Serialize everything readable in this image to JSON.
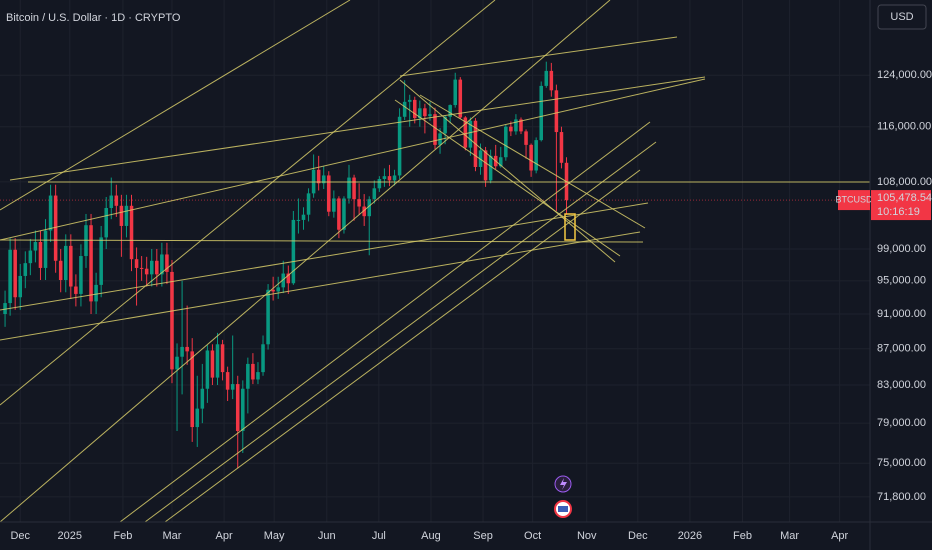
{
  "chart_data": {
    "type": "candlestick",
    "title": "Bitcoin / U.S. Dollar · 1D · CRYPTO",
    "currency": "USD",
    "symbol": "BTCUSD",
    "close_label": "105,478.54",
    "countdown": "10:16:19",
    "up_color": "#089981",
    "down_color": "#f23645",
    "log_scale": true,
    "grid": true,
    "ylim": [
      69500,
      136700
    ],
    "yticks": [
      {
        "value": 124000,
        "label": "124,000.00"
      },
      {
        "value": 116000,
        "label": "116,000.00"
      },
      {
        "value": 108000,
        "label": "108,000.00"
      },
      {
        "value": 99000,
        "label": "99,000.00"
      },
      {
        "value": 95000,
        "label": "95,000.00"
      },
      {
        "value": 91000,
        "label": "91,000.00"
      },
      {
        "value": 87000,
        "label": "87,000.00"
      },
      {
        "value": 83000,
        "label": "83,000.00"
      },
      {
        "value": 79000,
        "label": "79,000.00"
      },
      {
        "value": 75000,
        "label": "75,000.00"
      },
      {
        "value": 71800,
        "label": "71,800.00"
      }
    ],
    "xlim": [
      -1,
      171
    ],
    "xticks": [
      {
        "value": 3,
        "label": "Dec"
      },
      {
        "value": 12.8,
        "label": "2025"
      },
      {
        "value": 23.3,
        "label": "Feb"
      },
      {
        "value": 33,
        "label": "Mar"
      },
      {
        "value": 43.3,
        "label": "Apr"
      },
      {
        "value": 53.2,
        "label": "May"
      },
      {
        "value": 63.6,
        "label": "Jun"
      },
      {
        "value": 73.9,
        "label": "Jul"
      },
      {
        "value": 84.2,
        "label": "Aug"
      },
      {
        "value": 94.5,
        "label": "Sep"
      },
      {
        "value": 104.3,
        "label": "Oct"
      },
      {
        "value": 115,
        "label": "Nov"
      },
      {
        "value": 125.1,
        "label": "Dec"
      },
      {
        "value": 135.4,
        "label": "2026"
      },
      {
        "value": 145.8,
        "label": "Feb"
      },
      {
        "value": 155.1,
        "label": "Mar"
      },
      {
        "value": 165,
        "label": "Apr"
      }
    ],
    "open": [
      91000,
      92300,
      98900,
      93000,
      95600,
      97200,
      98800,
      99900,
      96600,
      101400,
      106100,
      97500,
      95100,
      99400,
      94300,
      93400,
      98100,
      102100,
      92500,
      94500,
      100500,
      104400,
      106100,
      104700,
      102000,
      104700,
      97700,
      96600,
      96500,
      95800,
      97500,
      95800,
      98300,
      96100,
      84700,
      86100,
      87200,
      86700,
      78600,
      80500,
      82600,
      86800,
      83800,
      87500,
      84400,
      82500,
      83100,
      78200,
      82600,
      85300,
      83600,
      84400,
      87500,
      93900,
      93700,
      94200,
      95900,
      94700,
      102800,
      102800,
      103500,
      106400,
      109700,
      107800,
      108900,
      103900,
      105700,
      101500,
      105700,
      108600,
      105600,
      104600,
      103300,
      105600,
      107100,
      108400,
      108800,
      108200,
      108900,
      117500,
      119800,
      120100,
      117300,
      118800,
      117600,
      117900,
      113300,
      115000,
      117500,
      119300,
      123300,
      117400,
      112900,
      116900,
      110100,
      112500,
      108200,
      111700,
      110200,
      111500,
      116000,
      115300,
      117100,
      115300,
      113300,
      109600,
      114000,
      122300,
      124700,
      121600,
      115200,
      110700
    ],
    "high": [
      93800,
      100400,
      100400,
      97100,
      98700,
      100300,
      101400,
      101400,
      102900,
      107600,
      107600,
      99000,
      100900,
      100900,
      95800,
      99600,
      103600,
      103600,
      96000,
      102000,
      105900,
      108600,
      107600,
      106200,
      106200,
      106200,
      99200,
      98100,
      98000,
      99000,
      99000,
      99800,
      99800,
      97600,
      87600,
      95000,
      92000,
      88200,
      84000,
      85300,
      87400,
      87500,
      88800,
      88000,
      85000,
      88500,
      84000,
      83500,
      86000,
      86500,
      85500,
      88500,
      94600,
      95500,
      95500,
      97500,
      96900,
      104000,
      105700,
      104500,
      107100,
      111900,
      111700,
      110200,
      109500,
      106800,
      106000,
      106000,
      110400,
      109000,
      107800,
      106300,
      106000,
      108200,
      108800,
      109900,
      110400,
      109700,
      118800,
      123200,
      120900,
      120600,
      120000,
      119500,
      119800,
      118900,
      115800,
      117700,
      119400,
      124400,
      123700,
      117600,
      117400,
      117300,
      113500,
      113000,
      112600,
      113300,
      113000,
      116300,
      116800,
      117900,
      117400,
      115600,
      113500,
      114400,
      123000,
      126200,
      126000,
      122500,
      116000,
      111500
    ],
    "low": [
      89500,
      90800,
      91500,
      91500,
      94100,
      95700,
      97300,
      95100,
      95100,
      99900,
      96000,
      93600,
      93600,
      92800,
      91900,
      91900,
      96600,
      91000,
      91000,
      93000,
      99000,
      102900,
      103200,
      98000,
      100500,
      96200,
      92000,
      95000,
      94300,
      94300,
      94300,
      94300,
      94600,
      83200,
      78200,
      82000,
      85200,
      77100,
      76600,
      79000,
      81100,
      83000,
      83000,
      83500,
      81300,
      81500,
      74500,
      76000,
      80000,
      83100,
      83100,
      84000,
      86900,
      92600,
      92800,
      93500,
      93400,
      94500,
      101000,
      101500,
      102600,
      105800,
      106800,
      107000,
      103300,
      103100,
      100400,
      101000,
      105000,
      102700,
      103500,
      102000,
      98200,
      105000,
      106600,
      107300,
      107400,
      107500,
      108400,
      117000,
      116000,
      116500,
      116000,
      115000,
      116900,
      112700,
      112000,
      113400,
      116500,
      118900,
      117200,
      112500,
      111700,
      109500,
      109000,
      107300,
      107800,
      109800,
      110000,
      111000,
      114600,
      114800,
      114900,
      111300,
      108700,
      109200,
      113800,
      122000,
      120600,
      104000,
      109900,
      103500
    ],
    "close": [
      92300,
      98900,
      93000,
      95600,
      97200,
      98800,
      99900,
      96600,
      101400,
      106100,
      97500,
      95100,
      99400,
      94300,
      93400,
      98100,
      102100,
      92500,
      94500,
      100500,
      104400,
      106100,
      104700,
      102000,
      104700,
      97700,
      96600,
      96500,
      95800,
      97500,
      95800,
      98300,
      96100,
      84700,
      86100,
      87200,
      86700,
      78600,
      80500,
      82600,
      86800,
      83800,
      87500,
      84400,
      82500,
      83100,
      78200,
      82600,
      85300,
      83600,
      84400,
      87500,
      93900,
      93700,
      94200,
      95900,
      94700,
      102800,
      102800,
      103500,
      106400,
      109700,
      107800,
      108900,
      103900,
      105700,
      101500,
      105700,
      108600,
      105600,
      104600,
      103300,
      105600,
      107100,
      108400,
      108800,
      108200,
      108900,
      117500,
      119800,
      120100,
      117300,
      118800,
      117600,
      117900,
      113300,
      115000,
      117500,
      119300,
      123300,
      117400,
      112900,
      116900,
      110100,
      112500,
      108200,
      111700,
      110200,
      111500,
      116000,
      115300,
      117100,
      115300,
      113300,
      109600,
      114000,
      122300,
      124700,
      121600,
      115200,
      110700,
      105478.54
    ]
  }
}
